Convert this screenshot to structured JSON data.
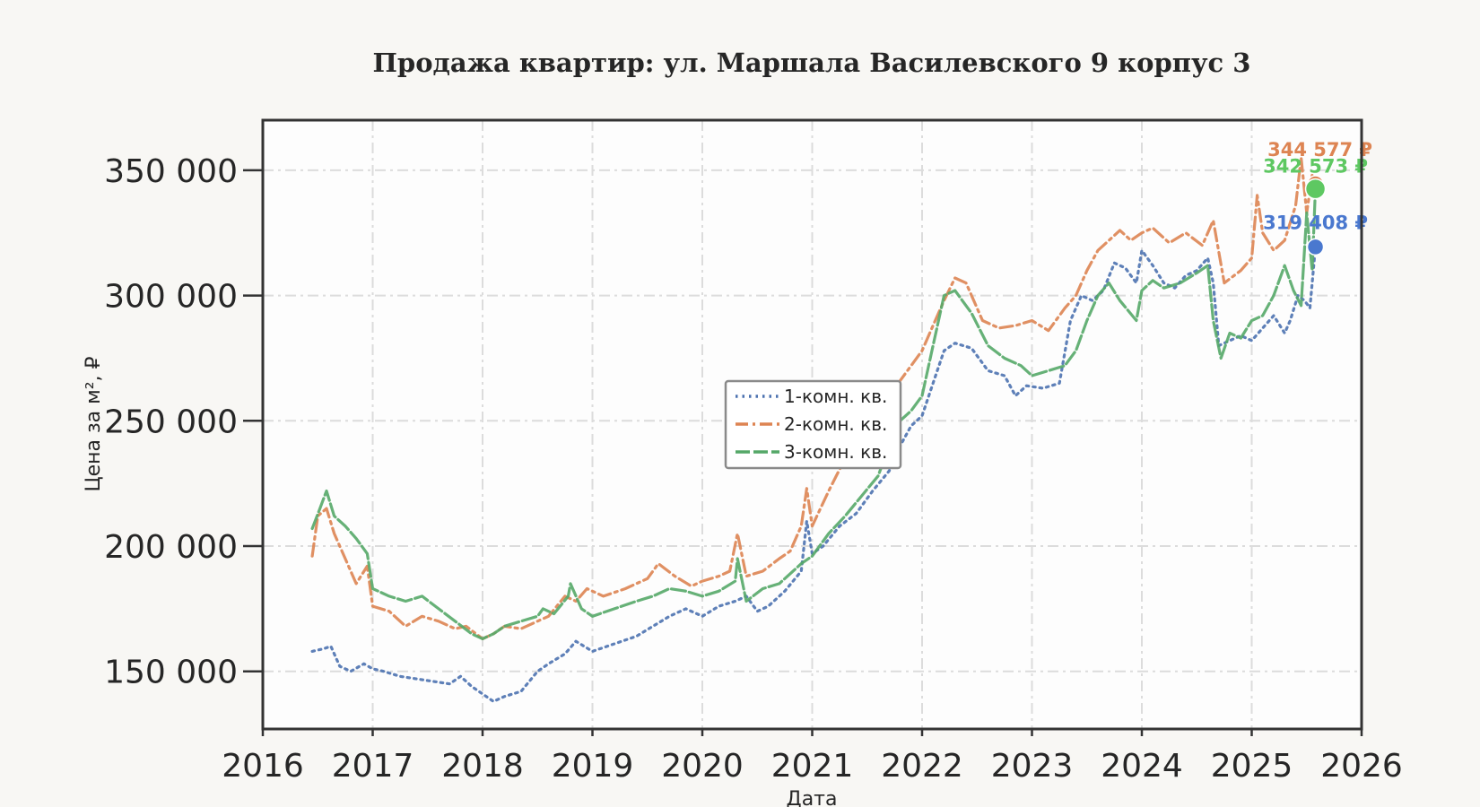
{
  "chart_data": {
    "type": "line",
    "title": "Продажа квартир: ул. Маршала Василевского 9 корпус 3",
    "xlabel": "Дата",
    "ylabel": "Цена за м², ₽",
    "xlim": [
      2016,
      2026
    ],
    "ylim": [
      127000,
      370000
    ],
    "x_ticks": [
      2016,
      2017,
      2018,
      2019,
      2020,
      2021,
      2022,
      2023,
      2024,
      2025,
      2026
    ],
    "x_tick_labels": [
      "2016",
      "2017",
      "2018",
      "2019",
      "2020",
      "2021",
      "2022",
      "2023",
      "2024",
      "2025",
      "2026"
    ],
    "y_ticks": [
      150000,
      200000,
      250000,
      300000,
      350000
    ],
    "y_tick_labels": [
      "150 000",
      "200 000",
      "250 000",
      "300 000",
      "350 000"
    ],
    "grid": true,
    "legend_position": "center",
    "series": [
      {
        "name": "1-комн. кв.",
        "color": "#4c72b0",
        "style": "dotted",
        "x": [
          2016.45,
          2016.55,
          2016.62,
          2016.7,
          2016.8,
          2016.92,
          2017.0,
          2017.1,
          2017.25,
          2017.4,
          2017.55,
          2017.7,
          2017.8,
          2017.9,
          2018.0,
          2018.1,
          2018.2,
          2018.35,
          2018.5,
          2018.6,
          2018.75,
          2018.85,
          2019.0,
          2019.2,
          2019.4,
          2019.55,
          2019.7,
          2019.85,
          2020.0,
          2020.15,
          2020.3,
          2020.4,
          2020.5,
          2020.6,
          2020.75,
          2020.9,
          2020.95,
          2021.0,
          2021.1,
          2021.25,
          2021.4,
          2021.55,
          2021.7,
          2021.8,
          2021.9,
          2022.0,
          2022.1,
          2022.2,
          2022.3,
          2022.45,
          2022.6,
          2022.75,
          2022.85,
          2022.95,
          2023.1,
          2023.25,
          2023.35,
          2023.45,
          2023.55,
          2023.65,
          2023.75,
          2023.85,
          2023.95,
          2024.0,
          2024.1,
          2024.2,
          2024.3,
          2024.4,
          2024.5,
          2024.6,
          2024.65,
          2024.7,
          2024.8,
          2024.9,
          2025.0,
          2025.1,
          2025.2,
          2025.3,
          2025.35,
          2025.42,
          2025.48,
          2025.53,
          2025.58
        ],
        "y": [
          158000,
          159000,
          160000,
          152000,
          150000,
          153000,
          151000,
          150000,
          148000,
          147000,
          146000,
          145000,
          148000,
          144000,
          141000,
          138000,
          140000,
          142000,
          150000,
          153000,
          157000,
          162000,
          158000,
          161000,
          164000,
          168000,
          172000,
          175000,
          172000,
          176000,
          178000,
          180000,
          174000,
          176000,
          182000,
          190000,
          210000,
          197000,
          200000,
          208000,
          213000,
          222000,
          230000,
          240000,
          248000,
          252000,
          265000,
          278000,
          281000,
          279000,
          270000,
          268000,
          260000,
          264000,
          263000,
          265000,
          290000,
          300000,
          298000,
          302000,
          313000,
          311000,
          305000,
          318000,
          312000,
          305000,
          303000,
          308000,
          310000,
          315000,
          305000,
          280000,
          282000,
          284000,
          282000,
          287000,
          292000,
          285000,
          290000,
          300000,
          298000,
          295000,
          319408
        ]
      },
      {
        "name": "2-комн. кв.",
        "color": "#dd8452",
        "style": "dashdot",
        "x": [
          2016.45,
          2016.5,
          2016.58,
          2016.65,
          2016.75,
          2016.85,
          2016.95,
          2017.0,
          2017.15,
          2017.3,
          2017.45,
          2017.6,
          2017.75,
          2017.85,
          2018.0,
          2018.1,
          2018.2,
          2018.35,
          2018.5,
          2018.6,
          2018.75,
          2018.85,
          2018.95,
          2019.1,
          2019.3,
          2019.5,
          2019.6,
          2019.75,
          2019.9,
          2020.0,
          2020.15,
          2020.25,
          2020.32,
          2020.4,
          2020.55,
          2020.7,
          2020.8,
          2020.9,
          2020.95,
          2021.0,
          2021.15,
          2021.3,
          2021.45,
          2021.6,
          2021.7,
          2021.8,
          2021.9,
          2022.0,
          2022.1,
          2022.2,
          2022.3,
          2022.4,
          2022.55,
          2022.7,
          2022.85,
          2023.0,
          2023.15,
          2023.3,
          2023.4,
          2023.5,
          2023.6,
          2023.7,
          2023.8,
          2023.9,
          2024.0,
          2024.1,
          2024.25,
          2024.4,
          2024.55,
          2024.65,
          2024.75,
          2024.9,
          2025.0,
          2025.05,
          2025.1,
          2025.2,
          2025.3,
          2025.4,
          2025.45,
          2025.5,
          2025.55,
          2025.58
        ],
        "y": [
          196000,
          212000,
          215000,
          205000,
          195000,
          185000,
          192000,
          176000,
          174000,
          168000,
          172000,
          170000,
          167000,
          168000,
          163000,
          165000,
          168000,
          167000,
          170000,
          172000,
          180000,
          178000,
          183000,
          180000,
          183000,
          187000,
          193000,
          188000,
          184000,
          186000,
          188000,
          190000,
          205000,
          188000,
          190000,
          195000,
          198000,
          208000,
          223000,
          208000,
          222000,
          235000,
          240000,
          248000,
          258000,
          266000,
          272000,
          278000,
          288000,
          298000,
          307000,
          305000,
          290000,
          287000,
          288000,
          290000,
          286000,
          295000,
          300000,
          310000,
          318000,
          322000,
          326000,
          322000,
          325000,
          327000,
          321000,
          325000,
          320000,
          330000,
          305000,
          310000,
          315000,
          340000,
          325000,
          318000,
          322000,
          336000,
          355000,
          333000,
          348000,
          344577
        ]
      },
      {
        "name": "3-комн. кв.",
        "color": "#55a868",
        "style": "dashed",
        "x": [
          2016.45,
          2016.52,
          2016.58,
          2016.65,
          2016.75,
          2016.85,
          2016.95,
          2017.0,
          2017.15,
          2017.3,
          2017.45,
          2017.6,
          2017.75,
          2017.9,
          2018.0,
          2018.1,
          2018.2,
          2018.35,
          2018.5,
          2018.55,
          2018.65,
          2018.78,
          2018.8,
          2018.9,
          2019.0,
          2019.2,
          2019.4,
          2019.55,
          2019.7,
          2019.85,
          2020.0,
          2020.15,
          2020.3,
          2020.32,
          2020.4,
          2020.55,
          2020.7,
          2020.8,
          2020.9,
          2021.0,
          2021.15,
          2021.3,
          2021.45,
          2021.6,
          2021.7,
          2021.8,
          2021.9,
          2022.0,
          2022.1,
          2022.2,
          2022.3,
          2022.45,
          2022.6,
          2022.75,
          2022.9,
          2023.0,
          2023.15,
          2023.3,
          2023.4,
          2023.5,
          2023.6,
          2023.7,
          2023.8,
          2023.95,
          2024.0,
          2024.1,
          2024.2,
          2024.35,
          2024.5,
          2024.6,
          2024.65,
          2024.72,
          2024.8,
          2024.9,
          2025.0,
          2025.1,
          2025.2,
          2025.3,
          2025.38,
          2025.45,
          2025.5,
          2025.55,
          2025.58
        ],
        "y": [
          207000,
          215000,
          222000,
          212000,
          208000,
          203000,
          197000,
          183000,
          180000,
          178000,
          180000,
          175000,
          170000,
          165000,
          163000,
          165000,
          168000,
          170000,
          172000,
          175000,
          173000,
          180000,
          185000,
          175000,
          172000,
          175000,
          178000,
          180000,
          183000,
          182000,
          180000,
          182000,
          186000,
          195000,
          178000,
          183000,
          185000,
          189000,
          193000,
          196000,
          205000,
          212000,
          220000,
          228000,
          240000,
          250000,
          254000,
          260000,
          280000,
          300000,
          302000,
          293000,
          280000,
          275000,
          272000,
          268000,
          270000,
          272000,
          278000,
          290000,
          300000,
          305000,
          298000,
          290000,
          302000,
          306000,
          303000,
          305000,
          309000,
          312000,
          290000,
          275000,
          285000,
          283000,
          290000,
          292000,
          300000,
          312000,
          302000,
          296000,
          333000,
          310000,
          342573
        ]
      }
    ],
    "end_markers": [
      {
        "series": "2-комн. кв.",
        "label": "344 577 ₽",
        "color": "#dd8452"
      },
      {
        "series": "3-комн. кв.",
        "label": "342 573 ₽",
        "color": "#5ec862"
      },
      {
        "series": "1-комн. кв.",
        "label": "319 408 ₽",
        "color": "#4a78cf"
      }
    ]
  }
}
